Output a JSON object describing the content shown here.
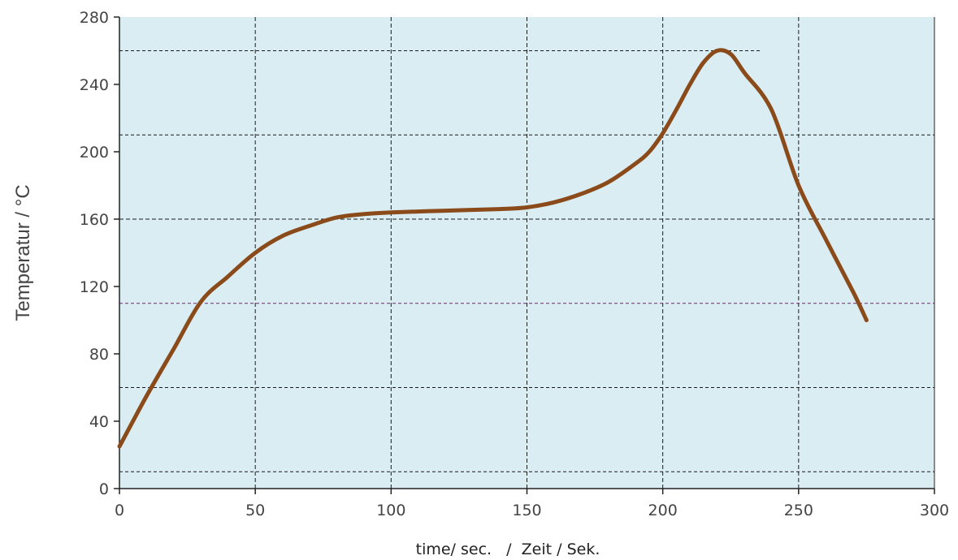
{
  "chart_data": {
    "type": "line",
    "title": "",
    "xlabel": "time/ sec.   /  Zeit / Sek.",
    "ylabel": "Temperatur / °C",
    "xlim": [
      0,
      300
    ],
    "ylim": [
      0,
      280
    ],
    "x_ticks": [
      0,
      50,
      100,
      150,
      200,
      250,
      300
    ],
    "y_ticks": [
      0,
      40,
      80,
      120,
      160,
      200,
      240,
      280
    ],
    "x_tick_labels": [
      "0",
      "50",
      "100",
      "150",
      "200",
      "250",
      "300"
    ],
    "y_tick_labels": [
      "0",
      "40",
      "80",
      "120",
      "160",
      "200",
      "240",
      "280"
    ],
    "grid": true,
    "legend": "none",
    "colors": {
      "plot_background": "#d9edf2",
      "series": "#8b4a1a",
      "grid": "#1a1a1a",
      "reference_purple": "#6a2a6a"
    },
    "series": [
      {
        "x": [
          0,
          10,
          20,
          30,
          40,
          50,
          60,
          70,
          80,
          90,
          100,
          120,
          140,
          150,
          160,
          170,
          180,
          190,
          195,
          200,
          205,
          210,
          215,
          220,
          225,
          230,
          240,
          250,
          260,
          270,
          275
        ],
        "y": [
          25,
          55,
          83,
          111,
          126,
          140,
          150,
          156,
          161,
          163,
          164,
          165,
          166,
          167,
          170,
          175,
          182,
          193,
          200,
          211,
          225,
          240,
          253,
          260,
          258,
          247,
          225,
          180,
          148,
          117,
          100
        ]
      }
    ],
    "reference_lines": [
      {
        "y": 260,
        "x_start": 0,
        "x_end": 236,
        "style": "dashed",
        "color": "#1a1a1a"
      },
      {
        "y": 210,
        "x_start": 0,
        "x_end": 300,
        "style": "dashed",
        "color": "#1a1a1a"
      },
      {
        "y": 110,
        "x_start": 0,
        "x_end": 300,
        "style": "dashed",
        "color": "#6a2a6a"
      },
      {
        "y": 60,
        "x_start": 0,
        "x_end": 300,
        "style": "dashed",
        "color": "#1a1a1a"
      },
      {
        "y": 10,
        "x_start": 0,
        "x_end": 300,
        "style": "dashed",
        "color": "#1a1a1a"
      }
    ]
  }
}
